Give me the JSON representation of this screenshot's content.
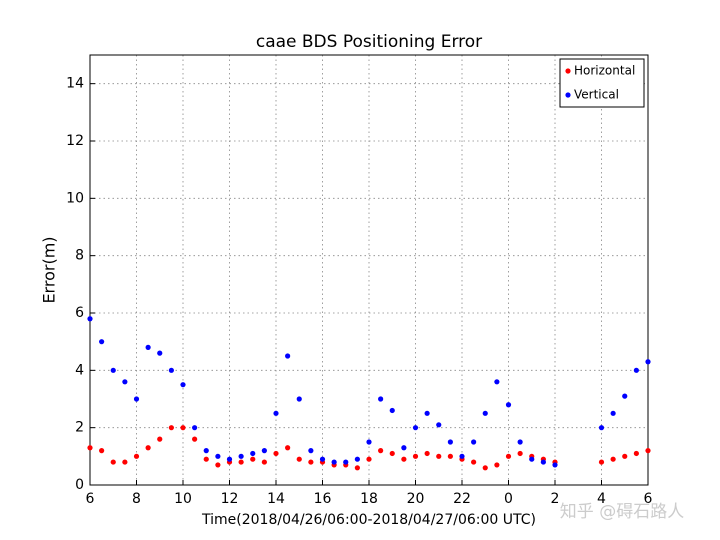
{
  "chart_data": {
    "type": "scatter",
    "title": "caae BDS Positioning Error",
    "x_label": "Time(2018/04/26/06:00-2018/04/27/06:00 UTC)",
    "y_label": "Error(m)",
    "watermark": "知乎 @碍石路人",
    "x": [
      6,
      6.5,
      7,
      7.5,
      8,
      8.5,
      9,
      9.5,
      10,
      10.5,
      11,
      11.5,
      12,
      12.5,
      13,
      13.5,
      14,
      14.5,
      15,
      15.5,
      16,
      16.5,
      17,
      17.5,
      18,
      18.5,
      19,
      19.5,
      20,
      20.5,
      21,
      21.5,
      22,
      22.5,
      23,
      23.5,
      24,
      24.5,
      25,
      25.5,
      26,
      28,
      28.5,
      29,
      29.5,
      30
    ],
    "series": [
      {
        "name": "Horizontal",
        "color": "#ff0000",
        "values": [
          1.3,
          1.2,
          0.8,
          0.8,
          1.0,
          1.3,
          1.6,
          2.0,
          2.0,
          1.6,
          0.9,
          0.7,
          0.8,
          0.8,
          0.9,
          0.8,
          1.1,
          1.3,
          0.9,
          0.8,
          0.8,
          0.7,
          0.7,
          0.6,
          0.9,
          1.2,
          1.1,
          0.9,
          1.0,
          1.1,
          1.0,
          1.0,
          0.9,
          0.8,
          0.6,
          0.7,
          1.0,
          1.1,
          1.0,
          0.9,
          0.8,
          0.8,
          0.9,
          1.0,
          1.1,
          1.2
        ]
      },
      {
        "name": "Vertical",
        "color": "#0000ff",
        "values": [
          5.8,
          5.0,
          4.0,
          3.6,
          3.0,
          4.8,
          4.6,
          4.0,
          3.5,
          2.0,
          1.2,
          1.0,
          0.9,
          1.0,
          1.1,
          1.2,
          2.5,
          4.5,
          3.0,
          1.2,
          0.9,
          0.8,
          0.8,
          0.9,
          1.5,
          3.0,
          2.6,
          1.3,
          2.0,
          2.5,
          2.1,
          1.5,
          1.0,
          1.5,
          2.5,
          3.6,
          2.8,
          1.5,
          0.9,
          0.8,
          0.7,
          2.0,
          2.5,
          3.1,
          4.0,
          4.3
        ]
      }
    ],
    "xlim": [
      6,
      30
    ],
    "xticks": [
      6,
      8,
      10,
      12,
      14,
      16,
      18,
      20,
      22,
      {
        "value": 24,
        "label": "0"
      },
      {
        "value": 26,
        "label": "2"
      },
      {
        "value": 28,
        "label": "4"
      },
      {
        "value": 30,
        "label": "6"
      }
    ],
    "ylim": [
      0,
      15
    ],
    "yticks": [
      0,
      2,
      4,
      6,
      8,
      10,
      12,
      14
    ],
    "grid": true,
    "legend": "upper right"
  }
}
